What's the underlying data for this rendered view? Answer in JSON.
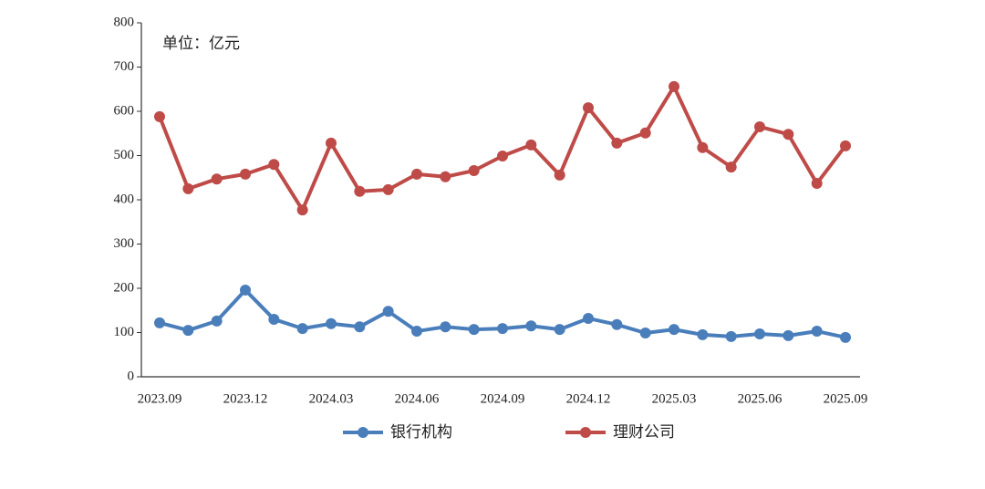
{
  "chart_data": {
    "type": "line",
    "annotation": "单位：亿元",
    "categories": [
      "2023.09",
      null,
      null,
      "2023.12",
      null,
      null,
      "2024.03",
      null,
      null,
      "2024.06",
      null,
      null,
      "2024.09",
      null,
      null,
      "2024.12",
      null,
      null,
      "2025.03",
      null,
      null,
      "2025.06",
      null,
      null,
      "2025.09"
    ],
    "series": [
      {
        "name": "银行机构",
        "color": "#4a7ebb",
        "values": [
          122,
          105,
          126,
          196,
          130,
          109,
          120,
          113,
          148,
          103,
          113,
          107,
          109,
          115,
          107,
          132,
          118,
          99,
          107,
          95,
          91,
          97,
          93,
          103,
          89
        ]
      },
      {
        "name": "理财公司",
        "color": "#be4b48",
        "values": [
          588,
          425,
          447,
          458,
          480,
          377,
          528,
          419,
          423,
          458,
          452,
          466,
          499,
          524,
          456,
          608,
          528,
          551,
          656,
          518,
          474,
          565,
          548,
          437,
          522
        ]
      }
    ],
    "ylim": [
      0,
      800
    ],
    "yticks": [
      0,
      100,
      200,
      300,
      400,
      500,
      600,
      700,
      800
    ],
    "grid": false
  }
}
